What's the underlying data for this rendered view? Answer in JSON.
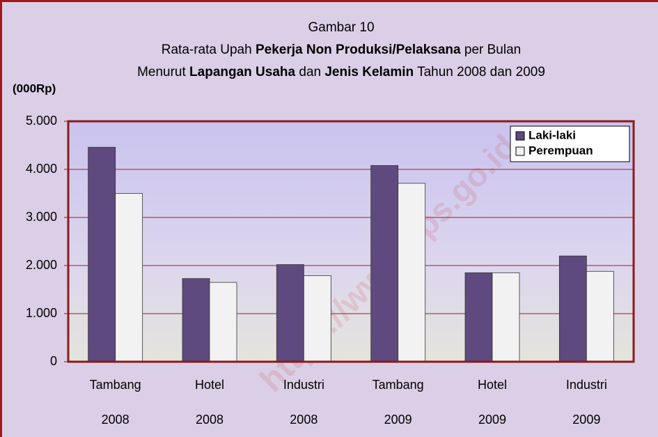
{
  "chart_data": {
    "type": "bar",
    "title_lines": [
      [
        {
          "text": "Gambar 10",
          "bold": false
        }
      ],
      [
        {
          "text": "Rata-rata Upah ",
          "bold": false
        },
        {
          "text": "Pekerja Non Produksi/Pelaksana",
          "bold": true
        },
        {
          "text": " per Bulan",
          "bold": false
        }
      ],
      [
        {
          "text": "Menurut ",
          "bold": false
        },
        {
          "text": "Lapangan Usaha",
          "bold": true
        },
        {
          "text": " dan ",
          "bold": false
        },
        {
          "text": "Jenis Kelamin",
          "bold": true
        },
        {
          "text": " Tahun 2008 dan 2009",
          "bold": false
        }
      ]
    ],
    "y_label": "(000Rp)",
    "watermark": "https://www.bps.go.id",
    "categories": [
      [
        "Tambang",
        "2008"
      ],
      [
        "Hotel",
        "2008"
      ],
      [
        "Industri",
        "2008"
      ],
      [
        "Tambang",
        "2009"
      ],
      [
        "Hotel",
        "2009"
      ],
      [
        "Industri",
        "2009"
      ]
    ],
    "series": [
      {
        "name": "Laki-laki",
        "color": "#5e4a7e",
        "values": [
          4460,
          1730,
          2020,
          4080,
          1850,
          2200
        ]
      },
      {
        "name": "Perempuan",
        "color": "#f2f2f2",
        "values": [
          3500,
          1650,
          1790,
          3710,
          1850,
          1880
        ]
      }
    ],
    "ylim": [
      0,
      5000
    ],
    "yticks": [
      0,
      {
        "value": 1000,
        "label": "1.000"
      },
      {
        "value": 2000,
        "label": "2.000"
      },
      {
        "value": 3000,
        "label": "3.000"
      },
      {
        "value": 4000,
        "label": "4.000"
      },
      {
        "value": 5000,
        "label": "5.000"
      }
    ],
    "grid": true,
    "legend": "top-right"
  }
}
